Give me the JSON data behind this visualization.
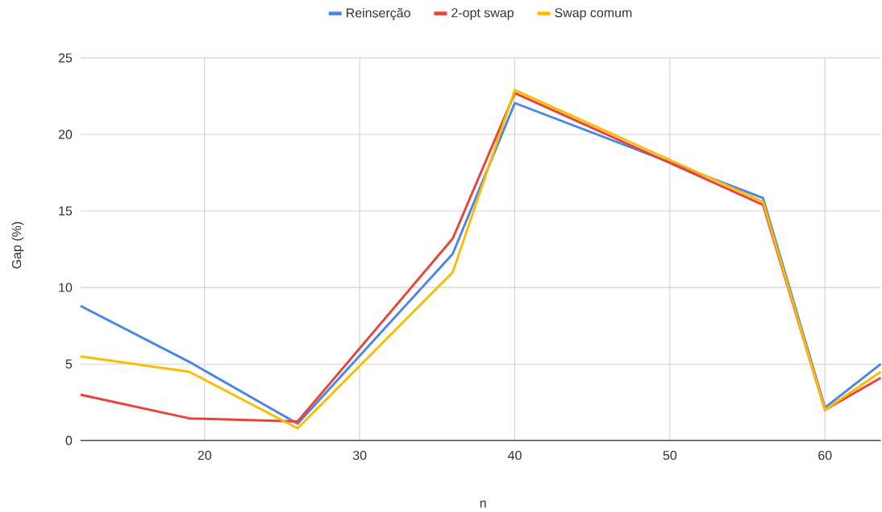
{
  "chart_data": {
    "type": "line",
    "xlabel": "n",
    "ylabel": "Gap (%)",
    "x": [
      12,
      19,
      26,
      36,
      40,
      56,
      60,
      63.6
    ],
    "series": [
      {
        "name": "Reinserção",
        "color": "#4a86e8",
        "values": [
          8.8,
          5.15,
          1.1,
          12.2,
          22.05,
          15.85,
          2.15,
          5.0
        ]
      },
      {
        "name": "2-opt swap",
        "color": "#e84538",
        "values": [
          3.0,
          1.45,
          1.25,
          13.2,
          22.7,
          15.4,
          2.0,
          4.1
        ]
      },
      {
        "name": "Swap comum",
        "color": "#fbbc04",
        "values": [
          5.5,
          4.5,
          0.8,
          11.0,
          22.9,
          15.6,
          2.0,
          4.5
        ]
      }
    ],
    "xlim": [
      12,
      63.6
    ],
    "xticks": [
      20,
      30,
      40,
      50,
      60
    ],
    "ylim": [
      0,
      25
    ],
    "yticks": [
      0,
      5,
      10,
      15,
      20,
      25
    ],
    "grid": true,
    "legend": "top",
    "marker": "none",
    "line_style": "solid"
  }
}
